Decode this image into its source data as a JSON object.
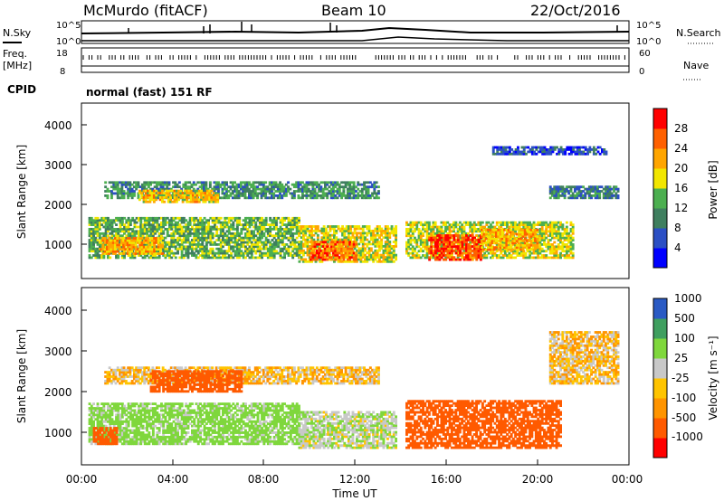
{
  "header": {
    "station": "McMurdo (fitACF)",
    "beam": "Beam 10",
    "date": "22/Oct/2016"
  },
  "noise": {
    "left_label": "N.Sky",
    "right_label": "N.Search",
    "left_ticks": [
      "10^5",
      "10^0"
    ],
    "right_ticks": [
      "10^5",
      "10^0"
    ]
  },
  "freq": {
    "left_label_1": "Freq.",
    "left_label_2": "[MHz]",
    "left_ticks": [
      "18",
      "8"
    ],
    "right_label": "Nave",
    "right_ticks": [
      "60",
      "0"
    ]
  },
  "cpid": {
    "label": "CPID",
    "text": "normal (fast) 151 RF"
  },
  "colors": {
    "power": [
      "#0000ff",
      "#2b4fc4",
      "#3f7f5f",
      "#4caf50",
      "#f2e600",
      "#ffa500",
      "#ff6000",
      "#ff0000"
    ],
    "velocity": [
      "#ff0000",
      "#ff5a00",
      "#ff9400",
      "#ffc400",
      "#c8c8c8",
      "#7fd73c",
      "#3f9f5f",
      "#2a5ac4"
    ]
  },
  "chart_data": [
    {
      "type": "heatmap",
      "name": "power",
      "ylabel": "Slant Range [km]",
      "yticks": [
        "1000",
        "2000",
        "3000",
        "4000"
      ],
      "ylim": [
        200,
        4600
      ],
      "xlim": [
        0,
        24
      ],
      "colorbar_label": "Power [dB]",
      "colorbar_ticks": [
        "4",
        "8",
        "12",
        "16",
        "20",
        "24",
        "28"
      ],
      "colorbar_range": [
        0,
        32
      ],
      "bands": [
        {
          "t0": 1.0,
          "t1": 13.0,
          "r0": 2200,
          "r1": 2600,
          "v": 11
        },
        {
          "t0": 2.5,
          "t1": 6.0,
          "r0": 2100,
          "r1": 2400,
          "v": 20
        },
        {
          "t0": 0.3,
          "t1": 9.5,
          "r0": 700,
          "r1": 1700,
          "v": 14
        },
        {
          "t0": 0.8,
          "t1": 3.5,
          "r0": 800,
          "r1": 1200,
          "v": 22
        },
        {
          "t0": 9.5,
          "t1": 13.8,
          "r0": 600,
          "r1": 1500,
          "v": 18
        },
        {
          "t0": 10.0,
          "t1": 12.0,
          "r0": 650,
          "r1": 1100,
          "v": 26
        },
        {
          "t0": 14.2,
          "t1": 21.5,
          "r0": 700,
          "r1": 1600,
          "v": 17
        },
        {
          "t0": 15.2,
          "t1": 17.5,
          "r0": 650,
          "r1": 1300,
          "v": 28
        },
        {
          "t0": 17.5,
          "t1": 20.0,
          "r0": 900,
          "r1": 1400,
          "v": 22
        },
        {
          "t0": 20.5,
          "t1": 23.5,
          "r0": 2200,
          "r1": 2500,
          "v": 9
        },
        {
          "t0": 18.0,
          "t1": 23.0,
          "r0": 3300,
          "r1": 3500,
          "v": 6
        }
      ]
    },
    {
      "type": "heatmap",
      "name": "velocity",
      "ylabel": "Slant Range [km]",
      "xlabel": "Time UT",
      "yticks": [
        "1000",
        "2000",
        "3000",
        "4000"
      ],
      "ylim": [
        200,
        4600
      ],
      "xlim": [
        0,
        24
      ],
      "xticks": [
        "00:00",
        "04:00",
        "08:00",
        "12:00",
        "16:00",
        "20:00",
        "00:00"
      ],
      "colorbar_label": "Velocity [m s⁻¹]",
      "colorbar_ticks": [
        "-1000",
        "-500",
        "-100",
        "-25",
        "25",
        "100",
        "500",
        "1000"
      ],
      "bands": [
        {
          "t0": 1.0,
          "t1": 13.0,
          "r0": 2200,
          "r1": 2600,
          "v": 0
        },
        {
          "t0": 3.0,
          "t1": 7.0,
          "r0": 2000,
          "r1": 2500,
          "v": -300
        },
        {
          "t0": 0.3,
          "t1": 9.5,
          "r0": 700,
          "r1": 1700,
          "v": 150
        },
        {
          "t0": 0.5,
          "t1": 1.5,
          "r0": 700,
          "r1": 1100,
          "v": -200
        },
        {
          "t0": 9.5,
          "t1": 13.8,
          "r0": 600,
          "r1": 1500,
          "v": 80
        },
        {
          "t0": 14.2,
          "t1": 21.0,
          "r0": 600,
          "r1": 1800,
          "v": -250
        },
        {
          "t0": 20.5,
          "t1": 23.5,
          "r0": 2200,
          "r1": 3500,
          "v": 0
        }
      ]
    }
  ]
}
